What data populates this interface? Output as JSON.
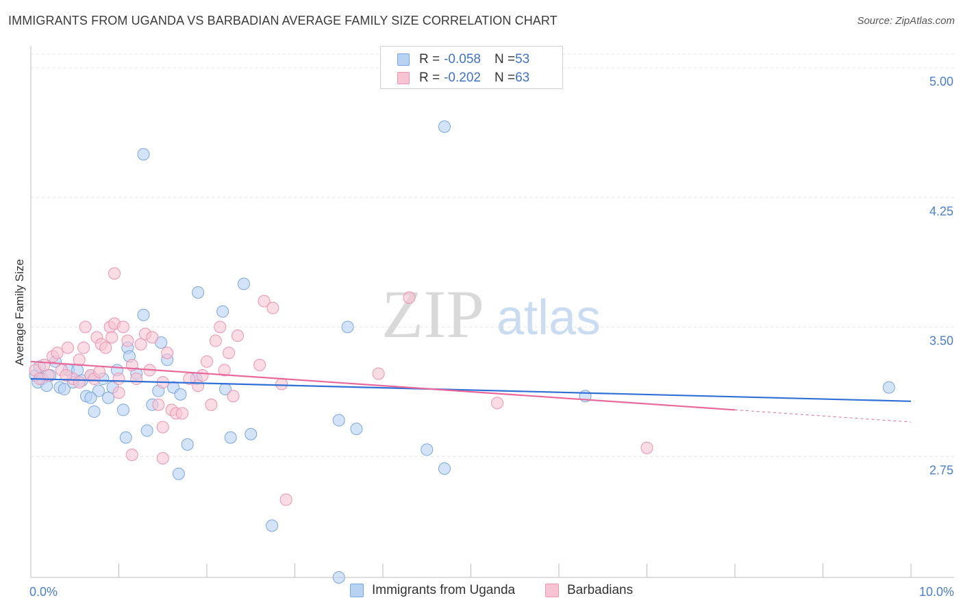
{
  "header": {
    "title": "IMMIGRANTS FROM UGANDA VS BARBADIAN AVERAGE FAMILY SIZE CORRELATION CHART",
    "source": "Source: ZipAtlas.com"
  },
  "watermark": {
    "zip": "ZIP",
    "atlas": "atlas"
  },
  "legend": {
    "rows": [
      {
        "r_label": "R = ",
        "r_value": "-0.058",
        "n_label": "N = ",
        "n_value": "53"
      },
      {
        "r_label": "R = ",
        "r_value": "-0.202",
        "n_label": "N = ",
        "n_value": "63"
      }
    ]
  },
  "colors": {
    "uganda_fill": "#b8d2f3",
    "uganda_stroke": "#7aa6e0",
    "uganda_line": "#2f6fd6",
    "barbadian_fill": "#f7c4d4",
    "barbadian_stroke": "#ec93b1",
    "barbadian_line": "#e8689a",
    "tick_text": "#4a7fd0"
  },
  "chart_data": {
    "type": "scatter",
    "title": "IMMIGRANTS FROM UGANDA VS BARBADIAN AVERAGE FAMILY SIZE CORRELATION CHART",
    "xlabel": "",
    "ylabel": "Average Family Size",
    "xlim": [
      0,
      10
    ],
    "ylim": [
      2.05,
      5.08
    ],
    "x_tick_labels": [
      "0.0%",
      "10.0%"
    ],
    "y_ticks": [
      2.75,
      3.5,
      4.25,
      5.0
    ],
    "y_tick_labels": [
      "2.75",
      "3.50",
      "4.25",
      "5.00"
    ],
    "grid": true,
    "legend_position": "bottom",
    "series": [
      {
        "name": "Immigrants from Uganda",
        "r": -0.058,
        "n": 53,
        "trend": {
          "x": [
            0.0,
            10.0
          ],
          "y": [
            3.2,
            3.07
          ]
        },
        "points": [
          [
            0.05,
            3.22
          ],
          [
            0.08,
            3.18
          ],
          [
            0.1,
            3.27
          ],
          [
            0.13,
            3.2
          ],
          [
            0.18,
            3.16
          ],
          [
            0.22,
            3.22
          ],
          [
            0.28,
            3.3
          ],
          [
            0.33,
            3.15
          ],
          [
            0.38,
            3.14
          ],
          [
            0.43,
            3.25
          ],
          [
            0.48,
            3.18
          ],
          [
            0.53,
            3.25
          ],
          [
            0.58,
            3.19
          ],
          [
            0.63,
            3.1
          ],
          [
            0.68,
            3.22
          ],
          [
            0.72,
            3.01
          ],
          [
            0.77,
            3.13
          ],
          [
            0.82,
            3.2
          ],
          [
            0.88,
            3.09
          ],
          [
            0.93,
            3.15
          ],
          [
            0.98,
            3.25
          ],
          [
            1.05,
            3.02
          ],
          [
            1.1,
            3.38
          ],
          [
            1.12,
            3.33
          ],
          [
            1.2,
            3.23
          ],
          [
            1.28,
            3.57
          ],
          [
            1.32,
            2.9
          ],
          [
            1.38,
            3.05
          ],
          [
            1.45,
            3.13
          ],
          [
            1.48,
            3.41
          ],
          [
            1.55,
            3.31
          ],
          [
            1.62,
            3.15
          ],
          [
            1.7,
            3.11
          ],
          [
            1.78,
            2.82
          ],
          [
            1.88,
            3.2
          ],
          [
            1.9,
            3.7
          ],
          [
            1.08,
            2.86
          ],
          [
            0.68,
            3.09
          ],
          [
            1.68,
            2.65
          ],
          [
            2.18,
            3.59
          ],
          [
            2.21,
            3.14
          ],
          [
            2.42,
            3.75
          ],
          [
            2.5,
            2.88
          ],
          [
            2.27,
            2.86
          ],
          [
            1.28,
            4.5
          ],
          [
            3.6,
            3.5
          ],
          [
            3.5,
            2.96
          ],
          [
            3.7,
            2.91
          ],
          [
            4.5,
            2.79
          ],
          [
            4.7,
            4.66
          ],
          [
            4.7,
            2.68
          ],
          [
            6.3,
            3.1
          ],
          [
            9.75,
            3.15
          ],
          [
            3.5,
            2.05
          ],
          [
            2.74,
            2.35
          ]
        ]
      },
      {
        "name": "Barbadians",
        "r": -0.202,
        "n": 63,
        "trend": {
          "x": [
            0.0,
            8.0
          ],
          "y": [
            3.3,
            3.02
          ]
        },
        "trend_dashed": {
          "x": [
            8.0,
            10.0
          ],
          "y": [
            3.02,
            2.95
          ]
        },
        "points": [
          [
            0.05,
            3.25
          ],
          [
            0.1,
            3.2
          ],
          [
            0.15,
            3.28
          ],
          [
            0.2,
            3.22
          ],
          [
            0.25,
            3.33
          ],
          [
            0.3,
            3.35
          ],
          [
            0.35,
            3.25
          ],
          [
            0.42,
            3.38
          ],
          [
            0.48,
            3.2
          ],
          [
            0.55,
            3.18
          ],
          [
            0.6,
            3.38
          ],
          [
            0.62,
            3.5
          ],
          [
            0.68,
            3.22
          ],
          [
            0.72,
            3.2
          ],
          [
            0.75,
            3.44
          ],
          [
            0.8,
            3.4
          ],
          [
            0.85,
            3.38
          ],
          [
            0.9,
            3.5
          ],
          [
            0.92,
            3.44
          ],
          [
            0.95,
            3.52
          ],
          [
            1.0,
            3.2
          ],
          [
            1.05,
            3.5
          ],
          [
            1.1,
            3.42
          ],
          [
            1.15,
            3.28
          ],
          [
            1.2,
            3.2
          ],
          [
            1.25,
            3.4
          ],
          [
            1.3,
            3.46
          ],
          [
            1.35,
            3.25
          ],
          [
            1.38,
            3.44
          ],
          [
            1.45,
            3.05
          ],
          [
            1.5,
            3.18
          ],
          [
            1.55,
            3.35
          ],
          [
            1.6,
            3.02
          ],
          [
            1.65,
            3.0
          ],
          [
            1.72,
            3.0
          ],
          [
            1.8,
            3.2
          ],
          [
            1.9,
            3.16
          ],
          [
            1.95,
            3.22
          ],
          [
            2.0,
            3.3
          ],
          [
            2.05,
            3.05
          ],
          [
            2.1,
            3.42
          ],
          [
            2.15,
            3.5
          ],
          [
            2.2,
            3.25
          ],
          [
            2.25,
            3.35
          ],
          [
            2.3,
            3.1
          ],
          [
            2.35,
            3.45
          ],
          [
            2.6,
            3.28
          ],
          [
            2.65,
            3.65
          ],
          [
            2.75,
            3.61
          ],
          [
            2.85,
            3.17
          ],
          [
            2.9,
            2.5
          ],
          [
            0.95,
            3.81
          ],
          [
            1.15,
            2.76
          ],
          [
            1.5,
            2.74
          ],
          [
            1.5,
            2.92
          ],
          [
            4.3,
            3.67
          ],
          [
            3.95,
            3.23
          ],
          [
            5.3,
            3.06
          ],
          [
            7.0,
            2.8
          ],
          [
            0.55,
            3.31
          ],
          [
            1.0,
            3.12
          ],
          [
            0.78,
            3.24
          ],
          [
            0.4,
            3.22
          ]
        ]
      }
    ]
  },
  "bottom_legend": {
    "items": [
      {
        "label": "Immigrants from Uganda"
      },
      {
        "label": "Barbadians"
      }
    ]
  }
}
